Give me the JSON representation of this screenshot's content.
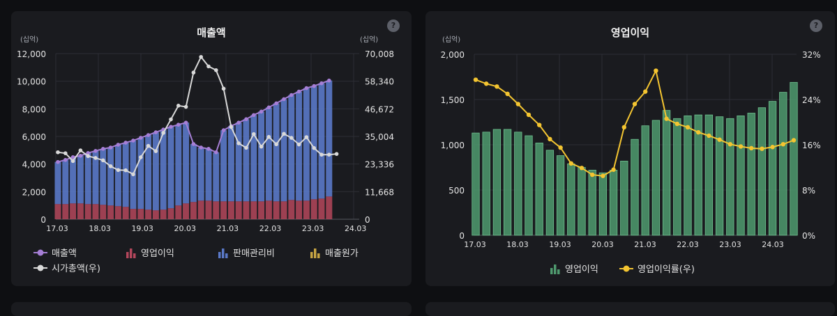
{
  "colors": {
    "revenue": "#a67fd6",
    "op_profit": "#b5475c",
    "sga": "#5a79c8",
    "cogs": "#c6a443",
    "market_cap": "#d9d9d9",
    "op_profit_green": "#4f9a6e",
    "op_margin": "#f4c531"
  },
  "left": {
    "title": "매출액",
    "unit_left": "(십억)",
    "unit_right": "(십억)",
    "help": "?",
    "legend": [
      "매출액",
      "영업이익",
      "판매관리비",
      "매출원가",
      "시가총액(우)"
    ]
  },
  "right": {
    "title": "영업이익",
    "unit_left": "(십억)",
    "help": "?",
    "legend": [
      "영업이익",
      "영업이익률(우)"
    ]
  },
  "chart_data": [
    {
      "type": "bar+line",
      "title": "매출액",
      "x_tick_labels": [
        "17.03",
        "18.03",
        "19.03",
        "20.03",
        "21.03",
        "22.03",
        "23.03",
        "24.03"
      ],
      "y_left": {
        "min": 0,
        "max": 12000,
        "ticks": [
          "0",
          "2,000",
          "4,000",
          "6,000",
          "8,000",
          "10,000",
          "12,000"
        ]
      },
      "y_right": {
        "min": 0,
        "max": 70008,
        "ticks": [
          "0",
          "11,668",
          "23,336",
          "35,004",
          "46,672",
          "58,340",
          "70,008"
        ]
      },
      "series": [
        {
          "name": "매출액",
          "kind": "line-left",
          "values": [
            4150,
            4300,
            4500,
            4600,
            4800,
            4950,
            5100,
            5200,
            5400,
            5550,
            5700,
            5900,
            6100,
            6300,
            6500,
            6700,
            6850,
            7000,
            5450,
            5200,
            5100,
            4850,
            6450,
            6750,
            7000,
            7250,
            7550,
            7800,
            8100,
            8400,
            8700,
            9000,
            9250,
            9500,
            9650,
            9850,
            10050
          ]
        },
        {
          "name": "영업이익",
          "kind": "bar-stack-bottom",
          "values": [
            1100,
            1100,
            1150,
            1150,
            1100,
            1100,
            1050,
            1000,
            950,
            900,
            750,
            750,
            700,
            650,
            700,
            800,
            1000,
            1150,
            1250,
            1350,
            1350,
            1300,
            1300,
            1300,
            1300,
            1300,
            1300,
            1300,
            1350,
            1300,
            1300,
            1400,
            1350,
            1350,
            1450,
            1500,
            1650
          ]
        },
        {
          "name": "판매관리비",
          "kind": "bar-stack-top",
          "values": [
            3050,
            3200,
            3350,
            3450,
            3700,
            3850,
            4050,
            4200,
            4450,
            4650,
            4950,
            5150,
            5400,
            5650,
            5800,
            5900,
            5850,
            5850,
            4200,
            3850,
            3750,
            3550,
            5150,
            5450,
            5700,
            5950,
            6250,
            6500,
            6750,
            7100,
            7400,
            7600,
            7900,
            8150,
            8200,
            8350,
            8400
          ]
        },
        {
          "name": "매출원가",
          "kind": "bar",
          "values": []
        },
        {
          "name": "시가총액(우)",
          "kind": "line-right",
          "values": [
            28300,
            27900,
            24600,
            29100,
            26700,
            25900,
            24900,
            22400,
            20800,
            20700,
            19000,
            26200,
            31000,
            28800,
            36500,
            42200,
            48000,
            47500,
            62000,
            68600,
            64600,
            63000,
            55200,
            39000,
            32100,
            30200,
            36000,
            30700,
            34800,
            31700,
            36100,
            34400,
            31600,
            34700,
            30100,
            27300,
            27300,
            27600
          ]
        }
      ]
    },
    {
      "type": "bar+line",
      "title": "영업이익",
      "x_tick_labels": [
        "17.03",
        "18.03",
        "19.03",
        "20.03",
        "21.03",
        "22.03",
        "23.03",
        "24.03"
      ],
      "y_left": {
        "min": 0,
        "max": 2000,
        "ticks": [
          "0",
          "500",
          "1,000",
          "1,500",
          "2,000"
        ]
      },
      "y_right": {
        "min": 0,
        "max": 32,
        "ticks": [
          "0%",
          "8%",
          "16%",
          "24%",
          "32%"
        ]
      },
      "series": [
        {
          "name": "영업이익",
          "kind": "bar",
          "values": [
            1130,
            1140,
            1170,
            1170,
            1140,
            1100,
            1020,
            940,
            880,
            790,
            750,
            720,
            690,
            720,
            820,
            1060,
            1210,
            1270,
            1380,
            1290,
            1320,
            1330,
            1330,
            1310,
            1290,
            1320,
            1350,
            1410,
            1480,
            1580,
            1690
          ]
        },
        {
          "name": "영업이익률(우)",
          "kind": "line-right",
          "values": [
            27.5,
            26.8,
            26.3,
            25,
            23.2,
            21.3,
            19.5,
            17,
            15.5,
            12.7,
            11.9,
            10.7,
            10.5,
            11.6,
            19.1,
            23.2,
            25.4,
            29.1,
            20.6,
            19.7,
            19.1,
            18.2,
            17.6,
            16.9,
            16.1,
            15.7,
            15.4,
            15.3,
            15.6,
            16.1,
            16.8
          ]
        }
      ]
    }
  ]
}
